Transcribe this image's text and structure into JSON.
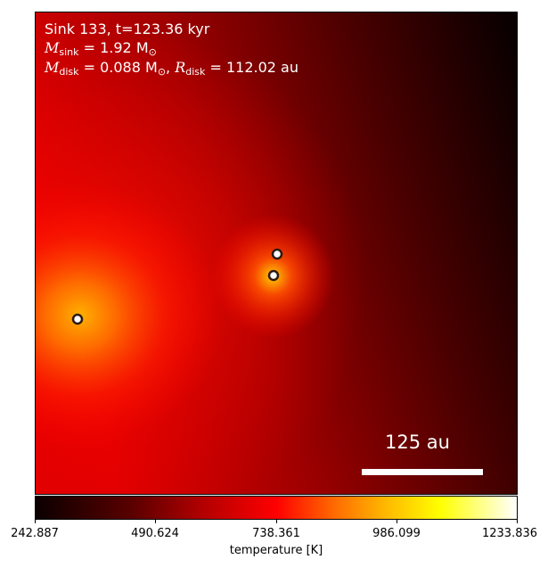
{
  "annotation": {
    "line1": "Sink 133, t=123.36 kyr",
    "m_sink_label": "M",
    "m_sink_sub": "sink",
    "m_sink_value": " = 1.92 M",
    "m_sink_unit_sub": "⊙",
    "m_disk_label": "M",
    "m_disk_sub": "disk",
    "m_disk_value": " = 0.088 M",
    "m_disk_unit_sub": "⊙",
    "r_disk_sep": ", ",
    "r_disk_label": "R",
    "r_disk_sub": "disk",
    "r_disk_value": " = 112.02 au"
  },
  "scale_bar": {
    "label": "125 au"
  },
  "colorbar": {
    "label": "temperature [K]",
    "ticks": [
      "242.887",
      "490.624",
      "738.361",
      "986.099",
      "1233.836"
    ]
  },
  "sinks": [
    {
      "name": "sink-1"
    },
    {
      "name": "sink-2"
    },
    {
      "name": "sink-3"
    }
  ],
  "colors": {
    "hot": "#ffff00",
    "warm": "#ff0000",
    "cold": "#0b0000",
    "marker_edge": "#2b1a10",
    "marker_fill": "#ffffff"
  }
}
